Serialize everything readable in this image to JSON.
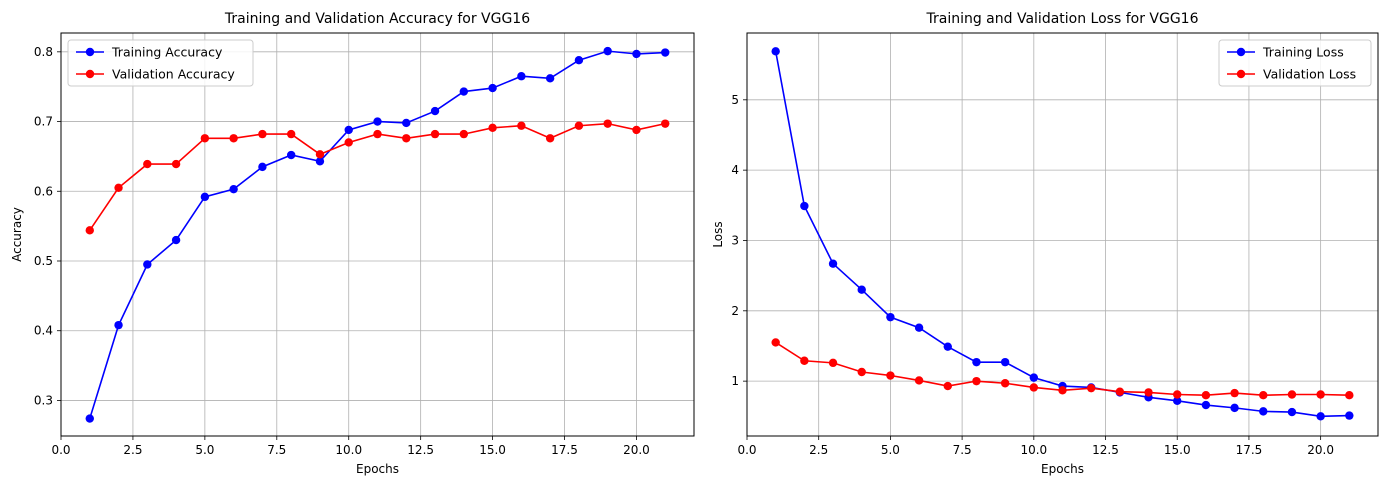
{
  "chart_data": [
    {
      "type": "line",
      "title": "Training and Validation Accuracy for VGG16",
      "xlabel": "Epochs",
      "ylabel": "Accuracy",
      "xlim": [
        0,
        22.0
      ],
      "ylim": [
        0.249,
        0.827
      ],
      "xticks": [
        0.0,
        2.5,
        5.0,
        7.5,
        10.0,
        12.5,
        15.0,
        17.5,
        20.0
      ],
      "xtick_labels": [
        "0.0",
        "2.5",
        "5.0",
        "7.5",
        "10.0",
        "12.5",
        "15.0",
        "17.5",
        "20.0"
      ],
      "yticks": [
        0.3,
        0.4,
        0.5,
        0.6,
        0.7,
        0.8
      ],
      "ytick_labels": [
        "0.3",
        "0.4",
        "0.5",
        "0.6",
        "0.7",
        "0.8"
      ],
      "grid": true,
      "legend_position": "top-left",
      "x": [
        1,
        2,
        3,
        4,
        5,
        6,
        7,
        8,
        9,
        10,
        11,
        12,
        13,
        14,
        15,
        16,
        17,
        18,
        19,
        20,
        21
      ],
      "series": [
        {
          "name": "Training Accuracy",
          "color": "#0000ff",
          "values": [
            0.274,
            0.408,
            0.495,
            0.53,
            0.592,
            0.603,
            0.635,
            0.652,
            0.643,
            0.688,
            0.7,
            0.698,
            0.715,
            0.743,
            0.748,
            0.765,
            0.762,
            0.788,
            0.801,
            0.797,
            0.799
          ]
        },
        {
          "name": "Validation Accuracy",
          "color": "#ff0000",
          "values": [
            0.544,
            0.605,
            0.639,
            0.639,
            0.676,
            0.676,
            0.682,
            0.682,
            0.653,
            0.67,
            0.682,
            0.676,
            0.682,
            0.682,
            0.691,
            0.694,
            0.676,
            0.694,
            0.697,
            0.688,
            0.697
          ]
        }
      ]
    },
    {
      "type": "line",
      "title": "Training and Validation Loss for VGG16",
      "xlabel": "Epochs",
      "ylabel": "Loss",
      "xlim": [
        0,
        22.0
      ],
      "ylim": [
        0.22,
        5.95
      ],
      "xticks": [
        0.0,
        2.5,
        5.0,
        7.5,
        10.0,
        12.5,
        15.0,
        17.5,
        20.0
      ],
      "xtick_labels": [
        "0.0",
        "2.5",
        "5.0",
        "7.5",
        "10.0",
        "12.5",
        "15.0",
        "17.5",
        "20.0"
      ],
      "yticks": [
        1,
        2,
        3,
        4,
        5
      ],
      "ytick_labels": [
        "1",
        "2",
        "3",
        "4",
        "5"
      ],
      "grid": true,
      "legend_position": "top-right",
      "x": [
        1,
        2,
        3,
        4,
        5,
        6,
        7,
        8,
        9,
        10,
        11,
        12,
        13,
        14,
        15,
        16,
        17,
        18,
        19,
        20,
        21
      ],
      "series": [
        {
          "name": "Training Loss",
          "color": "#0000ff",
          "values": [
            5.69,
            3.49,
            2.67,
            2.3,
            1.91,
            1.76,
            1.49,
            1.27,
            1.27,
            1.05,
            0.93,
            0.91,
            0.84,
            0.77,
            0.72,
            0.66,
            0.62,
            0.57,
            0.56,
            0.5,
            0.51
          ]
        },
        {
          "name": "Validation Loss",
          "color": "#ff0000",
          "values": [
            1.55,
            1.29,
            1.26,
            1.13,
            1.08,
            1.01,
            0.93,
            1.0,
            0.97,
            0.91,
            0.87,
            0.9,
            0.85,
            0.84,
            0.81,
            0.8,
            0.83,
            0.8,
            0.81,
            0.81,
            0.8
          ]
        }
      ]
    }
  ]
}
